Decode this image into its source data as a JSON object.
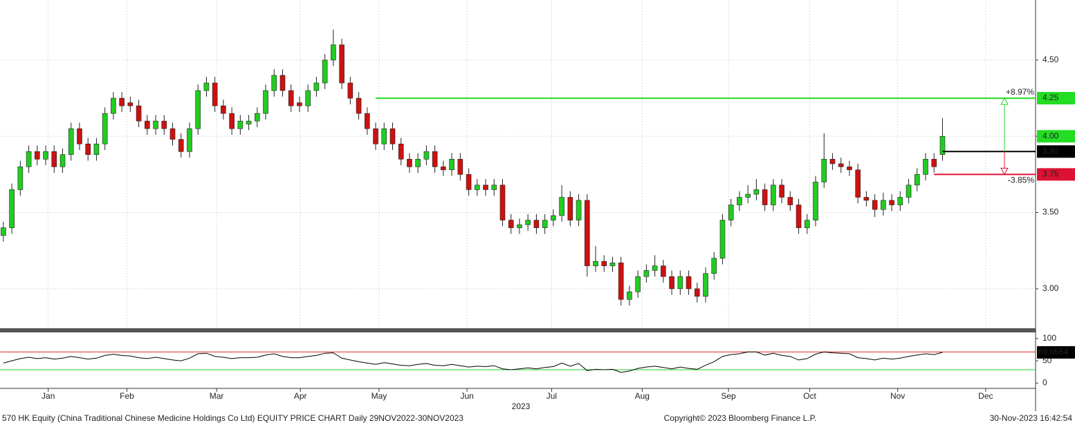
{
  "chart_data": {
    "type": "candlestick",
    "footer_left": "570 HK Equity (China Traditional Chinese Medicine Holdings Co Ltd) EQUITY PRICE CHART  Daily 29NOV2022-30NOV2023",
    "footer_center": "Copyright© 2023 Bloomberg Finance L.P.",
    "footer_right": "30-Nov-2023 16:42:54",
    "year_label": "2023",
    "up_color": "#22cc22",
    "down_color": "#cc1111",
    "grid": true,
    "xlim": [
      0.6,
      123
    ],
    "xticks": [
      {
        "value": 6.3,
        "label": "Jan"
      },
      {
        "value": 15.6,
        "label": "Feb"
      },
      {
        "value": 26.2,
        "label": "Mar"
      },
      {
        "value": 36.1,
        "label": "Apr"
      },
      {
        "value": 45.4,
        "label": "May"
      },
      {
        "value": 55.8,
        "label": "Jun"
      },
      {
        "value": 65.8,
        "label": "Jul"
      },
      {
        "value": 76.5,
        "label": "Aug"
      },
      {
        "value": 86.7,
        "label": "Sep"
      },
      {
        "value": 96.3,
        "label": "Oct"
      },
      {
        "value": 106.7,
        "label": "Nov"
      },
      {
        "value": 117.1,
        "label": "Dec"
      }
    ],
    "ylim": [
      2.75,
      4.894
    ],
    "yticks": [
      {
        "value": 3,
        "label": "3.00"
      },
      {
        "value": 3.5,
        "label": "3.50"
      },
      {
        "value": 4,
        "label": "4.00"
      },
      {
        "value": 4.5,
        "label": "4.50"
      }
    ],
    "candles": [
      [
        3.35,
        3.44,
        3.31,
        3.4
      ],
      [
        3.4,
        3.69,
        3.36,
        3.65
      ],
      [
        3.65,
        3.84,
        3.61,
        3.8
      ],
      [
        3.8,
        3.94,
        3.76,
        3.9
      ],
      [
        3.9,
        3.94,
        3.81,
        3.85
      ],
      [
        3.85,
        3.94,
        3.81,
        3.9
      ],
      [
        3.9,
        3.94,
        3.76,
        3.8
      ],
      [
        3.8,
        3.92,
        3.76,
        3.88
      ],
      [
        3.88,
        4.09,
        3.84,
        4.05
      ],
      [
        4.05,
        4.09,
        3.91,
        3.95
      ],
      [
        3.95,
        3.99,
        3.84,
        3.88
      ],
      [
        3.88,
        3.99,
        3.84,
        3.95
      ],
      [
        3.95,
        4.19,
        3.91,
        4.15
      ],
      [
        4.15,
        4.29,
        4.11,
        4.25
      ],
      [
        4.25,
        4.29,
        4.16,
        4.2
      ],
      [
        4.22,
        4.26,
        4.16,
        4.2
      ],
      [
        4.2,
        4.24,
        4.06,
        4.1
      ],
      [
        4.1,
        4.14,
        4.01,
        4.05
      ],
      [
        4.05,
        4.14,
        4.01,
        4.1
      ],
      [
        4.1,
        4.14,
        4.01,
        4.05
      ],
      [
        4.05,
        4.09,
        3.94,
        3.98
      ],
      [
        3.98,
        4.02,
        3.86,
        3.9
      ],
      [
        3.9,
        4.09,
        3.86,
        4.05
      ],
      [
        4.05,
        4.34,
        4.01,
        4.3
      ],
      [
        4.3,
        4.39,
        4.26,
        4.35
      ],
      [
        4.35,
        4.39,
        4.16,
        4.2
      ],
      [
        4.2,
        4.24,
        4.11,
        4.15
      ],
      [
        4.15,
        4.19,
        4.01,
        4.05
      ],
      [
        4.05,
        4.14,
        4.01,
        4.1
      ],
      [
        4.08,
        4.14,
        4.04,
        4.1
      ],
      [
        4.1,
        4.19,
        4.06,
        4.15
      ],
      [
        4.15,
        4.34,
        4.11,
        4.3
      ],
      [
        4.3,
        4.44,
        4.26,
        4.4
      ],
      [
        4.4,
        4.44,
        4.26,
        4.3
      ],
      [
        4.3,
        4.34,
        4.16,
        4.2
      ],
      [
        4.22,
        4.26,
        4.16,
        4.2
      ],
      [
        4.2,
        4.34,
        4.16,
        4.3
      ],
      [
        4.3,
        4.39,
        4.26,
        4.35
      ],
      [
        4.35,
        4.54,
        4.31,
        4.5
      ],
      [
        4.5,
        4.7,
        4.46,
        4.6
      ],
      [
        4.6,
        4.64,
        4.31,
        4.35
      ],
      [
        4.35,
        4.39,
        4.21,
        4.25
      ],
      [
        4.25,
        4.29,
        4.11,
        4.15
      ],
      [
        4.15,
        4.19,
        4.01,
        4.05
      ],
      [
        4.05,
        4.09,
        3.91,
        3.95
      ],
      [
        3.95,
        4.09,
        3.91,
        4.05
      ],
      [
        4.05,
        4.09,
        3.91,
        3.95
      ],
      [
        3.95,
        3.99,
        3.81,
        3.85
      ],
      [
        3.85,
        3.89,
        3.76,
        3.8
      ],
      [
        3.8,
        3.89,
        3.76,
        3.85
      ],
      [
        3.85,
        3.94,
        3.81,
        3.9
      ],
      [
        3.9,
        3.94,
        3.76,
        3.8
      ],
      [
        3.8,
        3.84,
        3.74,
        3.78
      ],
      [
        3.78,
        3.89,
        3.74,
        3.85
      ],
      [
        3.85,
        3.89,
        3.71,
        3.75
      ],
      [
        3.75,
        3.79,
        3.61,
        3.65
      ],
      [
        3.65,
        3.72,
        3.61,
        3.68
      ],
      [
        3.68,
        3.72,
        3.61,
        3.65
      ],
      [
        3.65,
        3.72,
        3.61,
        3.68
      ],
      [
        3.68,
        3.72,
        3.41,
        3.45
      ],
      [
        3.45,
        3.49,
        3.36,
        3.4
      ],
      [
        3.4,
        3.46,
        3.36,
        3.42
      ],
      [
        3.42,
        3.49,
        3.38,
        3.45
      ],
      [
        3.45,
        3.49,
        3.36,
        3.4
      ],
      [
        3.4,
        3.49,
        3.36,
        3.45
      ],
      [
        3.45,
        3.52,
        3.41,
        3.48
      ],
      [
        3.48,
        3.68,
        3.44,
        3.6
      ],
      [
        3.6,
        3.64,
        3.41,
        3.45
      ],
      [
        3.45,
        3.62,
        3.41,
        3.58
      ],
      [
        3.58,
        3.62,
        3.08,
        3.15
      ],
      [
        3.15,
        3.28,
        3.11,
        3.18
      ],
      [
        3.18,
        3.22,
        3.11,
        3.15
      ],
      [
        3.15,
        3.21,
        3.11,
        3.17
      ],
      [
        3.17,
        3.21,
        2.89,
        2.93
      ],
      [
        2.93,
        3.02,
        2.89,
        2.98
      ],
      [
        2.98,
        3.12,
        2.94,
        3.08
      ],
      [
        3.08,
        3.16,
        3.04,
        3.12
      ],
      [
        3.12,
        3.22,
        3.08,
        3.15
      ],
      [
        3.15,
        3.19,
        3.04,
        3.08
      ],
      [
        3.08,
        3.12,
        2.96,
        3.0
      ],
      [
        3.0,
        3.12,
        2.96,
        3.08
      ],
      [
        3.08,
        3.12,
        2.96,
        3.0
      ],
      [
        3.0,
        3.04,
        2.91,
        2.95
      ],
      [
        2.95,
        3.14,
        2.91,
        3.1
      ],
      [
        3.1,
        3.24,
        3.06,
        3.2
      ],
      [
        3.2,
        3.49,
        3.16,
        3.45
      ],
      [
        3.45,
        3.59,
        3.41,
        3.55
      ],
      [
        3.55,
        3.64,
        3.51,
        3.6
      ],
      [
        3.6,
        3.68,
        3.56,
        3.62
      ],
      [
        3.62,
        3.72,
        3.58,
        3.65
      ],
      [
        3.65,
        3.69,
        3.51,
        3.55
      ],
      [
        3.55,
        3.72,
        3.51,
        3.68
      ],
      [
        3.68,
        3.72,
        3.56,
        3.6
      ],
      [
        3.6,
        3.64,
        3.51,
        3.55
      ],
      [
        3.55,
        3.59,
        3.36,
        3.4
      ],
      [
        3.4,
        3.49,
        3.36,
        3.45
      ],
      [
        3.45,
        3.74,
        3.41,
        3.7
      ],
      [
        3.7,
        4.02,
        3.66,
        3.85
      ],
      [
        3.85,
        3.89,
        3.78,
        3.82
      ],
      [
        3.82,
        3.86,
        3.76,
        3.8
      ],
      [
        3.8,
        3.84,
        3.74,
        3.78
      ],
      [
        3.78,
        3.82,
        3.56,
        3.6
      ],
      [
        3.6,
        3.64,
        3.54,
        3.58
      ],
      [
        3.58,
        3.62,
        3.47,
        3.52
      ],
      [
        3.52,
        3.63,
        3.48,
        3.58
      ],
      [
        3.58,
        3.62,
        3.51,
        3.55
      ],
      [
        3.55,
        3.64,
        3.51,
        3.6
      ],
      [
        3.6,
        3.72,
        3.56,
        3.68
      ],
      [
        3.68,
        3.79,
        3.64,
        3.75
      ],
      [
        3.75,
        3.89,
        3.71,
        3.85
      ],
      [
        3.85,
        3.89,
        3.76,
        3.8
      ],
      [
        3.88,
        4.12,
        3.84,
        4.0
      ]
    ],
    "levels": [
      {
        "value": 4.25,
        "label": "4.25",
        "color": "#22dd22",
        "text_color": "#000000",
        "pct": "+8.97%",
        "line": true
      },
      {
        "value": 4,
        "label": "4.00",
        "color": "#22dd22",
        "text_color": "#000000",
        "line": false
      },
      {
        "value": 3.9,
        "label": "3.90",
        "color": "#000000",
        "text_color": "#ffffff",
        "line": true
      },
      {
        "value": 3.75,
        "label": "3.75",
        "color": "#dd1133",
        "text_color": "#ffffff",
        "pct": "-3.85%",
        "line": true
      }
    ],
    "rsi": {
      "ylim": [
        -12,
        114
      ],
      "yticks": [
        0,
        50,
        100
      ],
      "upper": 70,
      "lower": 30,
      "upper_color": "#dd2222",
      "lower_color": "#22cc22",
      "color": "#000000",
      "values": [
        45,
        50,
        55,
        58,
        55,
        57,
        54,
        56,
        60,
        57,
        54,
        56,
        62,
        65,
        62,
        61,
        57,
        55,
        58,
        55,
        52,
        50,
        56,
        66,
        67,
        60,
        58,
        55,
        57,
        57,
        58,
        63,
        66,
        60,
        57,
        57,
        60,
        62,
        67,
        68,
        56,
        52,
        48,
        45,
        42,
        46,
        43,
        40,
        39,
        42,
        44,
        40,
        39,
        42,
        39,
        36,
        38,
        37,
        39,
        32,
        30,
        32,
        34,
        32,
        35,
        37,
        45,
        38,
        44,
        28,
        31,
        30,
        31,
        24,
        27,
        33,
        36,
        38,
        35,
        32,
        36,
        33,
        31,
        40,
        48,
        60,
        64,
        66,
        70,
        70,
        63,
        67,
        62,
        60,
        52,
        55,
        65,
        70,
        68,
        67,
        66,
        57,
        55,
        52,
        56,
        54,
        56,
        60,
        63,
        66,
        64,
        69.0554
      ]
    }
  }
}
